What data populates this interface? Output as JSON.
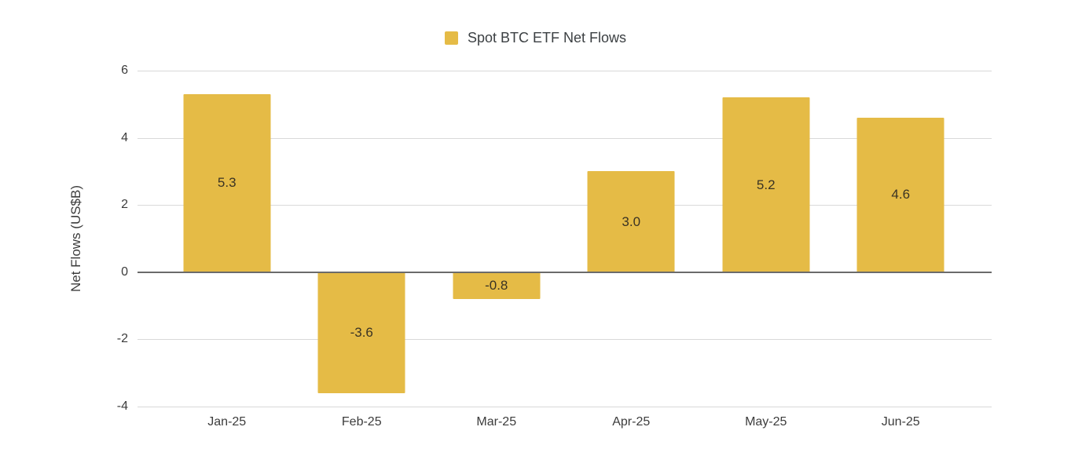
{
  "chart_data": {
    "type": "bar",
    "legend": "Spot BTC ETF Net Flows",
    "ylabel": "Net Flows (US$B)",
    "xlabel": "",
    "categories": [
      "Jan-25",
      "Feb-25",
      "Mar-25",
      "Apr-25",
      "May-25",
      "Jun-25"
    ],
    "values": [
      5.3,
      -3.6,
      -0.8,
      3.0,
      5.2,
      4.6
    ],
    "bar_labels": [
      "5.3",
      "-3.6",
      "-0.8",
      "3.0",
      "5.2",
      "4.6"
    ],
    "ylim": [
      -4,
      6
    ],
    "yticks": [
      6,
      4,
      2,
      0,
      -2,
      -4
    ],
    "grid": true,
    "legend_position": "top",
    "colors": {
      "bar": "#e5bb46",
      "gridline": "#d9d9d9",
      "zero_line": "#6b6b6b",
      "axis_text": "#3c3c3c",
      "value_text": "#3a3324",
      "background": "#ffffff"
    }
  }
}
